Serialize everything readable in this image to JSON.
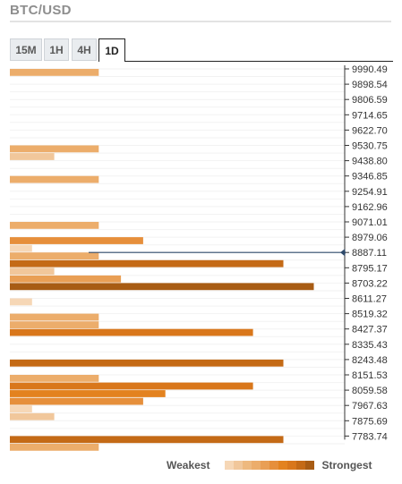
{
  "header": {
    "title": "BTC/USD"
  },
  "tabs": [
    {
      "label": "15M",
      "active": false
    },
    {
      "label": "1H",
      "active": false
    },
    {
      "label": "4H",
      "active": false
    },
    {
      "label": "1D",
      "active": true
    }
  ],
  "chart_data": {
    "type": "bar",
    "orientation": "horizontal",
    "price_levels": [
      "9990.49",
      "9898.54",
      "9806.59",
      "9714.65",
      "9622.70",
      "9530.75",
      "9438.80",
      "9346.85",
      "9254.91",
      "9162.96",
      "9071.01",
      "8979.06",
      "8887.11",
      "8795.17",
      "8703.22",
      "8611.27",
      "8519.32",
      "8427.37",
      "8335.43",
      "8243.48",
      "8151.53",
      "8059.58",
      "7967.63",
      "7875.69",
      "7783.74"
    ],
    "current_price": 8887.11,
    "max_strength": 10,
    "groups": [
      {
        "level_index": 0,
        "bars": [
          4
        ]
      },
      {
        "level_index": 5,
        "bars": [
          4,
          2
        ]
      },
      {
        "level_index": 7,
        "bars": [
          4
        ]
      },
      {
        "level_index": 10,
        "bars": [
          4
        ]
      },
      {
        "level_index": 11,
        "bars": [
          6,
          1,
          4,
          9,
          2,
          5,
          10
        ]
      },
      {
        "level_index": 15,
        "bars": [
          1
        ]
      },
      {
        "level_index": 16,
        "bars": [
          4,
          4,
          8
        ]
      },
      {
        "level_index": 19,
        "bars": [
          9
        ]
      },
      {
        "level_index": 20,
        "bars": [
          4,
          8
        ]
      },
      {
        "level_index": 21,
        "bars": [
          7,
          6
        ]
      },
      {
        "level_index": 22,
        "bars": [
          1,
          2
        ]
      },
      {
        "level_index": 24,
        "bars": [
          9,
          4
        ]
      }
    ]
  },
  "legend": {
    "weakest_label": "Weakest",
    "strongest_label": "Strongest",
    "colors": [
      "#f6d7b6",
      "#f1c79b",
      "#eeb97f",
      "#ecad6b",
      "#e99f55",
      "#e68f3b",
      "#e3821f",
      "#d9771b",
      "#c46a16",
      "#a85c14"
    ]
  }
}
